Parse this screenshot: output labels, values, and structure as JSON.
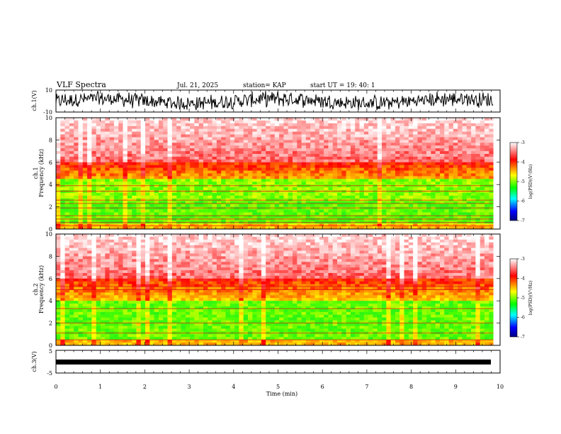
{
  "header": {
    "title": "VLF Spectra",
    "date": "Jul. 21, 2025",
    "station": "station= KAP",
    "start_time": "start UT =  19: 40: 1"
  },
  "chart_data": [
    {
      "id": "ch1_wave",
      "type": "line",
      "ylabel": "ch.1(V)",
      "ylim": [
        -10,
        10
      ],
      "yticks": [
        "10",
        "-10"
      ],
      "xlim": [
        0,
        10
      ],
      "color": "#000000"
    },
    {
      "id": "ch1_spec",
      "type": "heatmap",
      "ylabel": "ch.1 Frequency (kHz)",
      "ylim": [
        0,
        10
      ],
      "yticks": [
        0,
        2,
        4,
        6,
        8,
        10
      ],
      "xlim": [
        0,
        10
      ],
      "data_end_min": 9.85,
      "colorbar": {
        "label": "log(PSD)(V²/Hz)",
        "range": [
          -7,
          -3
        ],
        "ticks": [
          "-3",
          "-4",
          "-5",
          "-6",
          "-7"
        ]
      },
      "line_freqs_khz": [
        0.3,
        0.6,
        0.9,
        1.2,
        1.9,
        2.3,
        2.6,
        3.4,
        3.9
      ],
      "step_at_min": 5.2
    },
    {
      "id": "ch2_spec",
      "type": "heatmap",
      "ylabel": "ch.2 Frequency (kHz)",
      "ylim": [
        0,
        10
      ],
      "yticks": [
        0,
        2,
        4,
        6,
        8,
        10
      ],
      "xlim": [
        0,
        10
      ],
      "data_end_min": 9.85,
      "colorbar": {
        "label": "log(PSD)(V²/Hz)",
        "range": [
          -7,
          -3
        ],
        "ticks": [
          "-3",
          "-4",
          "-5",
          "-6",
          "-7"
        ]
      },
      "line_freqs_khz": [
        0.5,
        1.1,
        2.0,
        3.3,
        5.0,
        5.3
      ],
      "step_at_min": 5.2
    },
    {
      "id": "ch3_wave",
      "type": "line",
      "ylabel": "ch.3(V)",
      "ylim": [
        -5,
        5
      ],
      "yticks": [
        "5",
        "-5"
      ],
      "xlim": [
        0,
        10
      ],
      "color": "#000000"
    }
  ],
  "xaxis": {
    "label": "Time (min)",
    "ticks": [
      "0",
      "1",
      "2",
      "3",
      "4",
      "5",
      "6",
      "7",
      "8",
      "9",
      "10"
    ]
  },
  "colors": {
    "scale": [
      "#ffffff",
      "#ff0000",
      "#ffff00",
      "#00ff00",
      "#00ffff",
      "#0000ff",
      "#000080"
    ]
  }
}
